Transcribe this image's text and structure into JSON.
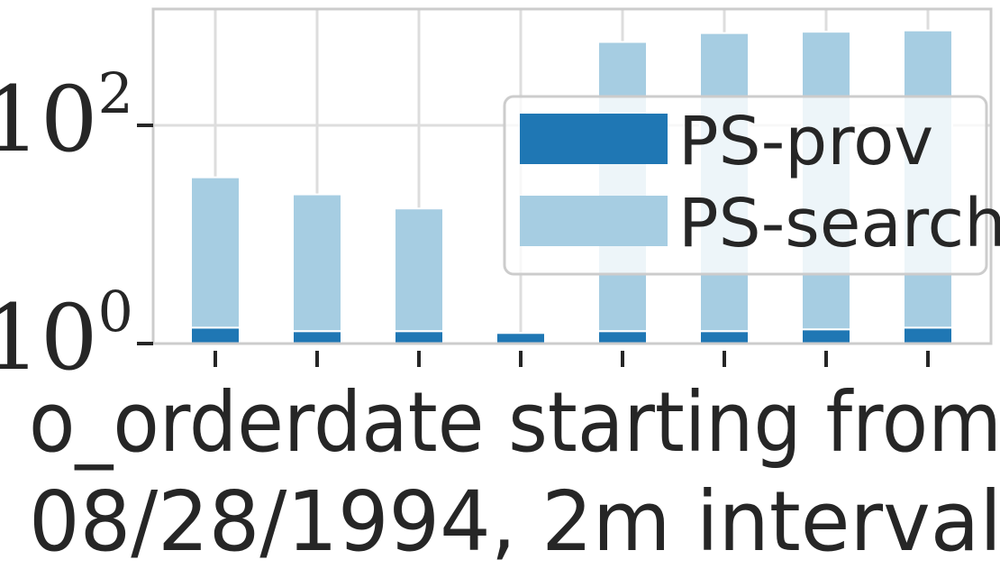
{
  "chart_data": {
    "type": "bar",
    "stacked": true,
    "yscale": "log",
    "ylim": [
      1,
      1000
    ],
    "yticks": [
      {
        "value": 1,
        "base": "10",
        "exp": "0"
      },
      {
        "value": 100,
        "base": "10",
        "exp": "2"
      }
    ],
    "xlabel_lines": [
      "o_orderdate starting from",
      "08/28/1994, 2m interval"
    ],
    "categories": [
      "",
      "",
      "",
      "",
      "",
      "",
      "",
      ""
    ],
    "series": [
      {
        "name": "PS-prov",
        "color": "#1f77b4",
        "values": [
          1.4,
          1.3,
          1.3,
          1.25,
          1.3,
          1.3,
          1.35,
          1.4
        ]
      },
      {
        "name": "PS-search",
        "color": "#a6cde2",
        "values": [
          32,
          22,
          16,
          0,
          580,
          700,
          720,
          740
        ]
      }
    ],
    "legend": {
      "location": "right"
    },
    "grid": true
  }
}
